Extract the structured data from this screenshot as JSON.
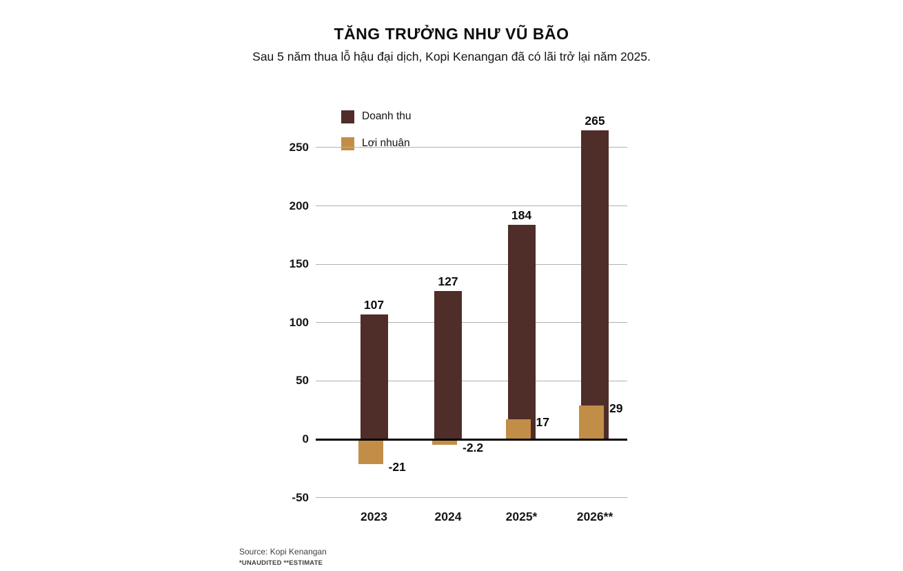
{
  "title": "TĂNG TRƯỞNG NHƯ VŨ BÃO",
  "subtitle": "Sau 5 năm thua lỗ hậu đại dịch, Kopi Kenangan đã có lãi trở lại năm 2025.",
  "source": "Source: Kopi Kenangan",
  "footnote": "*UNAUDITED **ESTIMATE",
  "colors": {
    "background": "#ffffff",
    "gridline": "#b0b0b0",
    "zero_line": "#000000",
    "text": "#0d0d0d"
  },
  "chart_data": {
    "type": "bar",
    "title": "TĂNG TRƯỞNG NHƯ VŨ BÃO",
    "categories": [
      "2023",
      "2024",
      "2025*",
      "2026**"
    ],
    "series": [
      {
        "name": "Doanh thu",
        "color": "#4f2d29",
        "values": [
          107,
          127,
          184,
          265
        ]
      },
      {
        "name": "Lợi nhuận",
        "color": "#c28e47",
        "values": [
          -21,
          -2.2,
          17,
          29
        ]
      }
    ],
    "yticks": [
      -50,
      0,
      50,
      100,
      150,
      200,
      250
    ],
    "ylim": [
      -50,
      270
    ],
    "grid": true,
    "legend_position": "top-left"
  }
}
